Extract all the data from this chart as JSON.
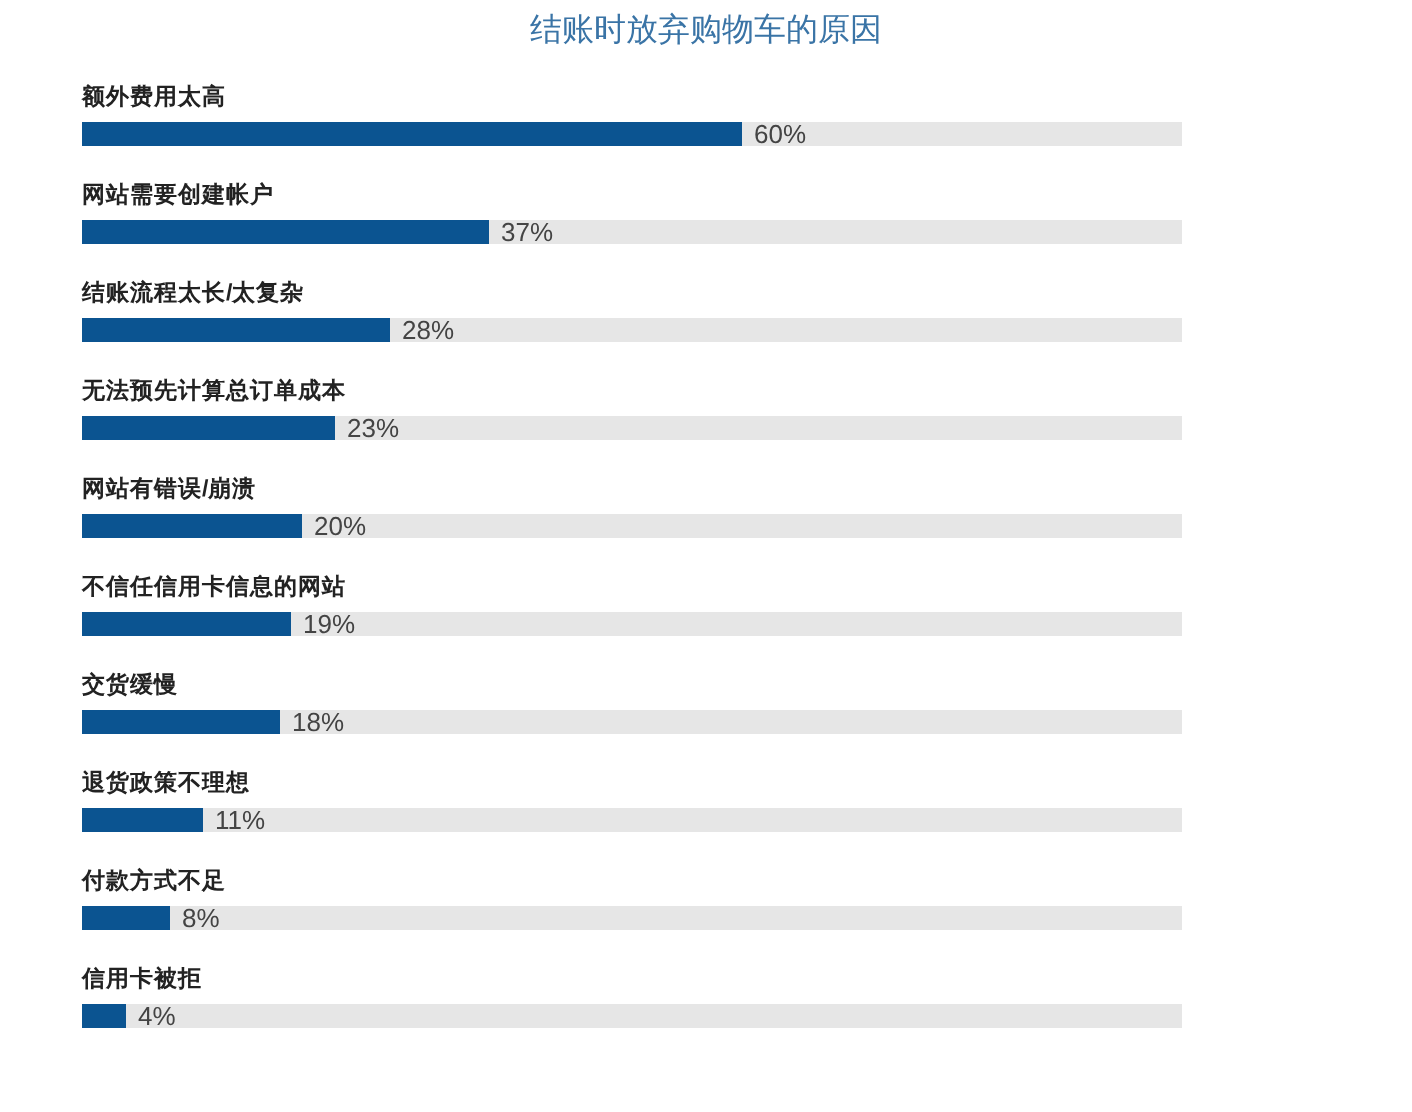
{
  "chart_data": {
    "type": "bar",
    "orientation": "horizontal",
    "title": "结账时放弃购物车的原因",
    "categories": [
      "额外费用太高",
      "网站需要创建帐户",
      "结账流程太长/太复杂",
      "无法预先计算总订单成本",
      "网站有错误/崩溃",
      "不信任信用卡信息的网站",
      "交货缓慢",
      "退货政策不理想",
      "付款方式不足",
      "信用卡被拒"
    ],
    "series": [
      {
        "color": "#0b5491",
        "values": [
          60,
          37,
          28,
          23,
          20,
          19,
          18,
          11,
          8,
          4
        ],
        "value_labels": [
          "60%",
          "37%",
          "28%",
          "23%",
          "20%",
          "19%",
          "18%",
          "11%",
          "8%",
          "4%"
        ]
      }
    ],
    "xlim": [
      0,
      100
    ]
  }
}
